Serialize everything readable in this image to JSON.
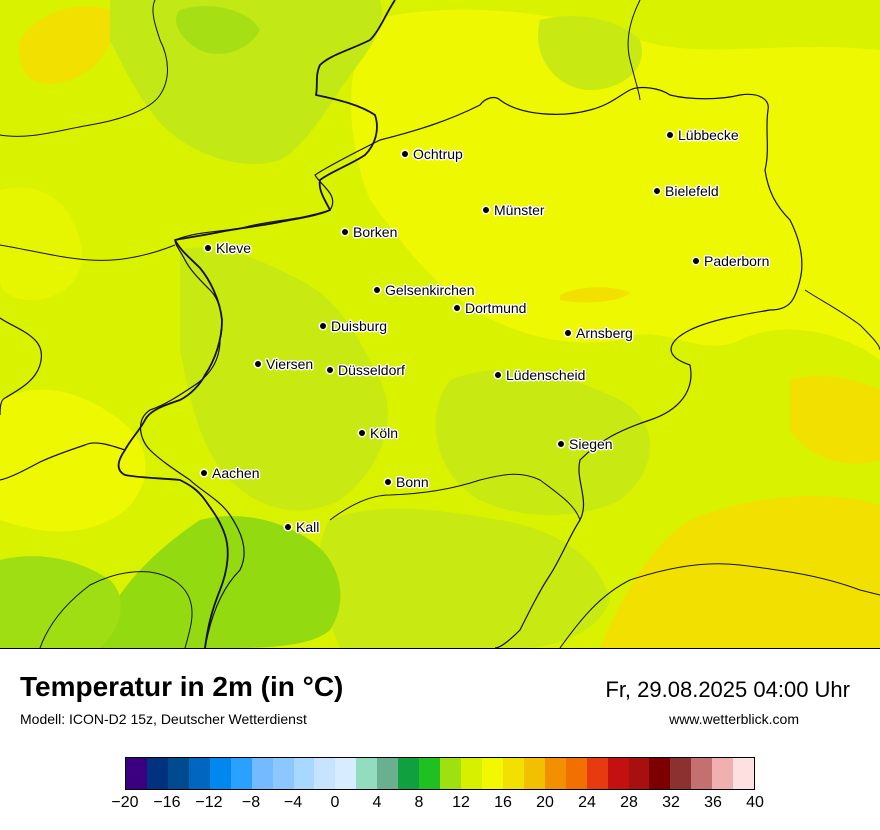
{
  "map": {
    "region": "Nordrhein-Westfalen",
    "colors": {
      "base": "#d8f200",
      "warm": "#eef800",
      "cool": "#b6e41a",
      "cooler": "#94da10",
      "hot": "#f2e000",
      "border": "#111111"
    },
    "cities": [
      {
        "name": "Lübbecke"
      },
      {
        "name": "Ochtrup"
      },
      {
        "name": "Bielefeld"
      },
      {
        "name": "Münster"
      },
      {
        "name": "Borken"
      },
      {
        "name": "Kleve"
      },
      {
        "name": "Paderborn"
      },
      {
        "name": "Gelsenkirchen"
      },
      {
        "name": "Dortmund"
      },
      {
        "name": "Duisburg"
      },
      {
        "name": "Arnsberg"
      },
      {
        "name": "Viersen"
      },
      {
        "name": "Düsseldorf"
      },
      {
        "name": "Lüdenscheid"
      },
      {
        "name": "Köln"
      },
      {
        "name": "Siegen"
      },
      {
        "name": "Aachen"
      },
      {
        "name": "Bonn"
      },
      {
        "name": "Kall"
      }
    ]
  },
  "footer": {
    "title": "Temperatur in 2m (in °C)",
    "model": "Modell: ICON-D2 15z, Deutscher Wetterdienst",
    "datetime": "Fr, 29.08.2025 04:00 Uhr",
    "website": "www.wetterblick.com"
  },
  "colorbar": {
    "colors": [
      "#3a007f",
      "#00327f",
      "#004a8f",
      "#0066c0",
      "#0088ee",
      "#2aa0ff",
      "#74baff",
      "#8cc8ff",
      "#a8d8ff",
      "#c6e4ff",
      "#d8ecff",
      "#94dcc0",
      "#6ab090",
      "#10a040",
      "#20c020",
      "#9ee010",
      "#d6f000",
      "#f2f800",
      "#f2e000",
      "#f2c000",
      "#f29000",
      "#f27000",
      "#e83a10",
      "#c41010",
      "#a81010",
      "#7c0000",
      "#8c3030",
      "#c47070",
      "#f0b0b0",
      "#ffe0e0"
    ],
    "tick_labels": [
      "−20",
      "−16",
      "−12",
      "−8",
      "−4",
      "0",
      "4",
      "8",
      "12",
      "16",
      "20",
      "24",
      "28",
      "32",
      "36",
      "40"
    ]
  }
}
